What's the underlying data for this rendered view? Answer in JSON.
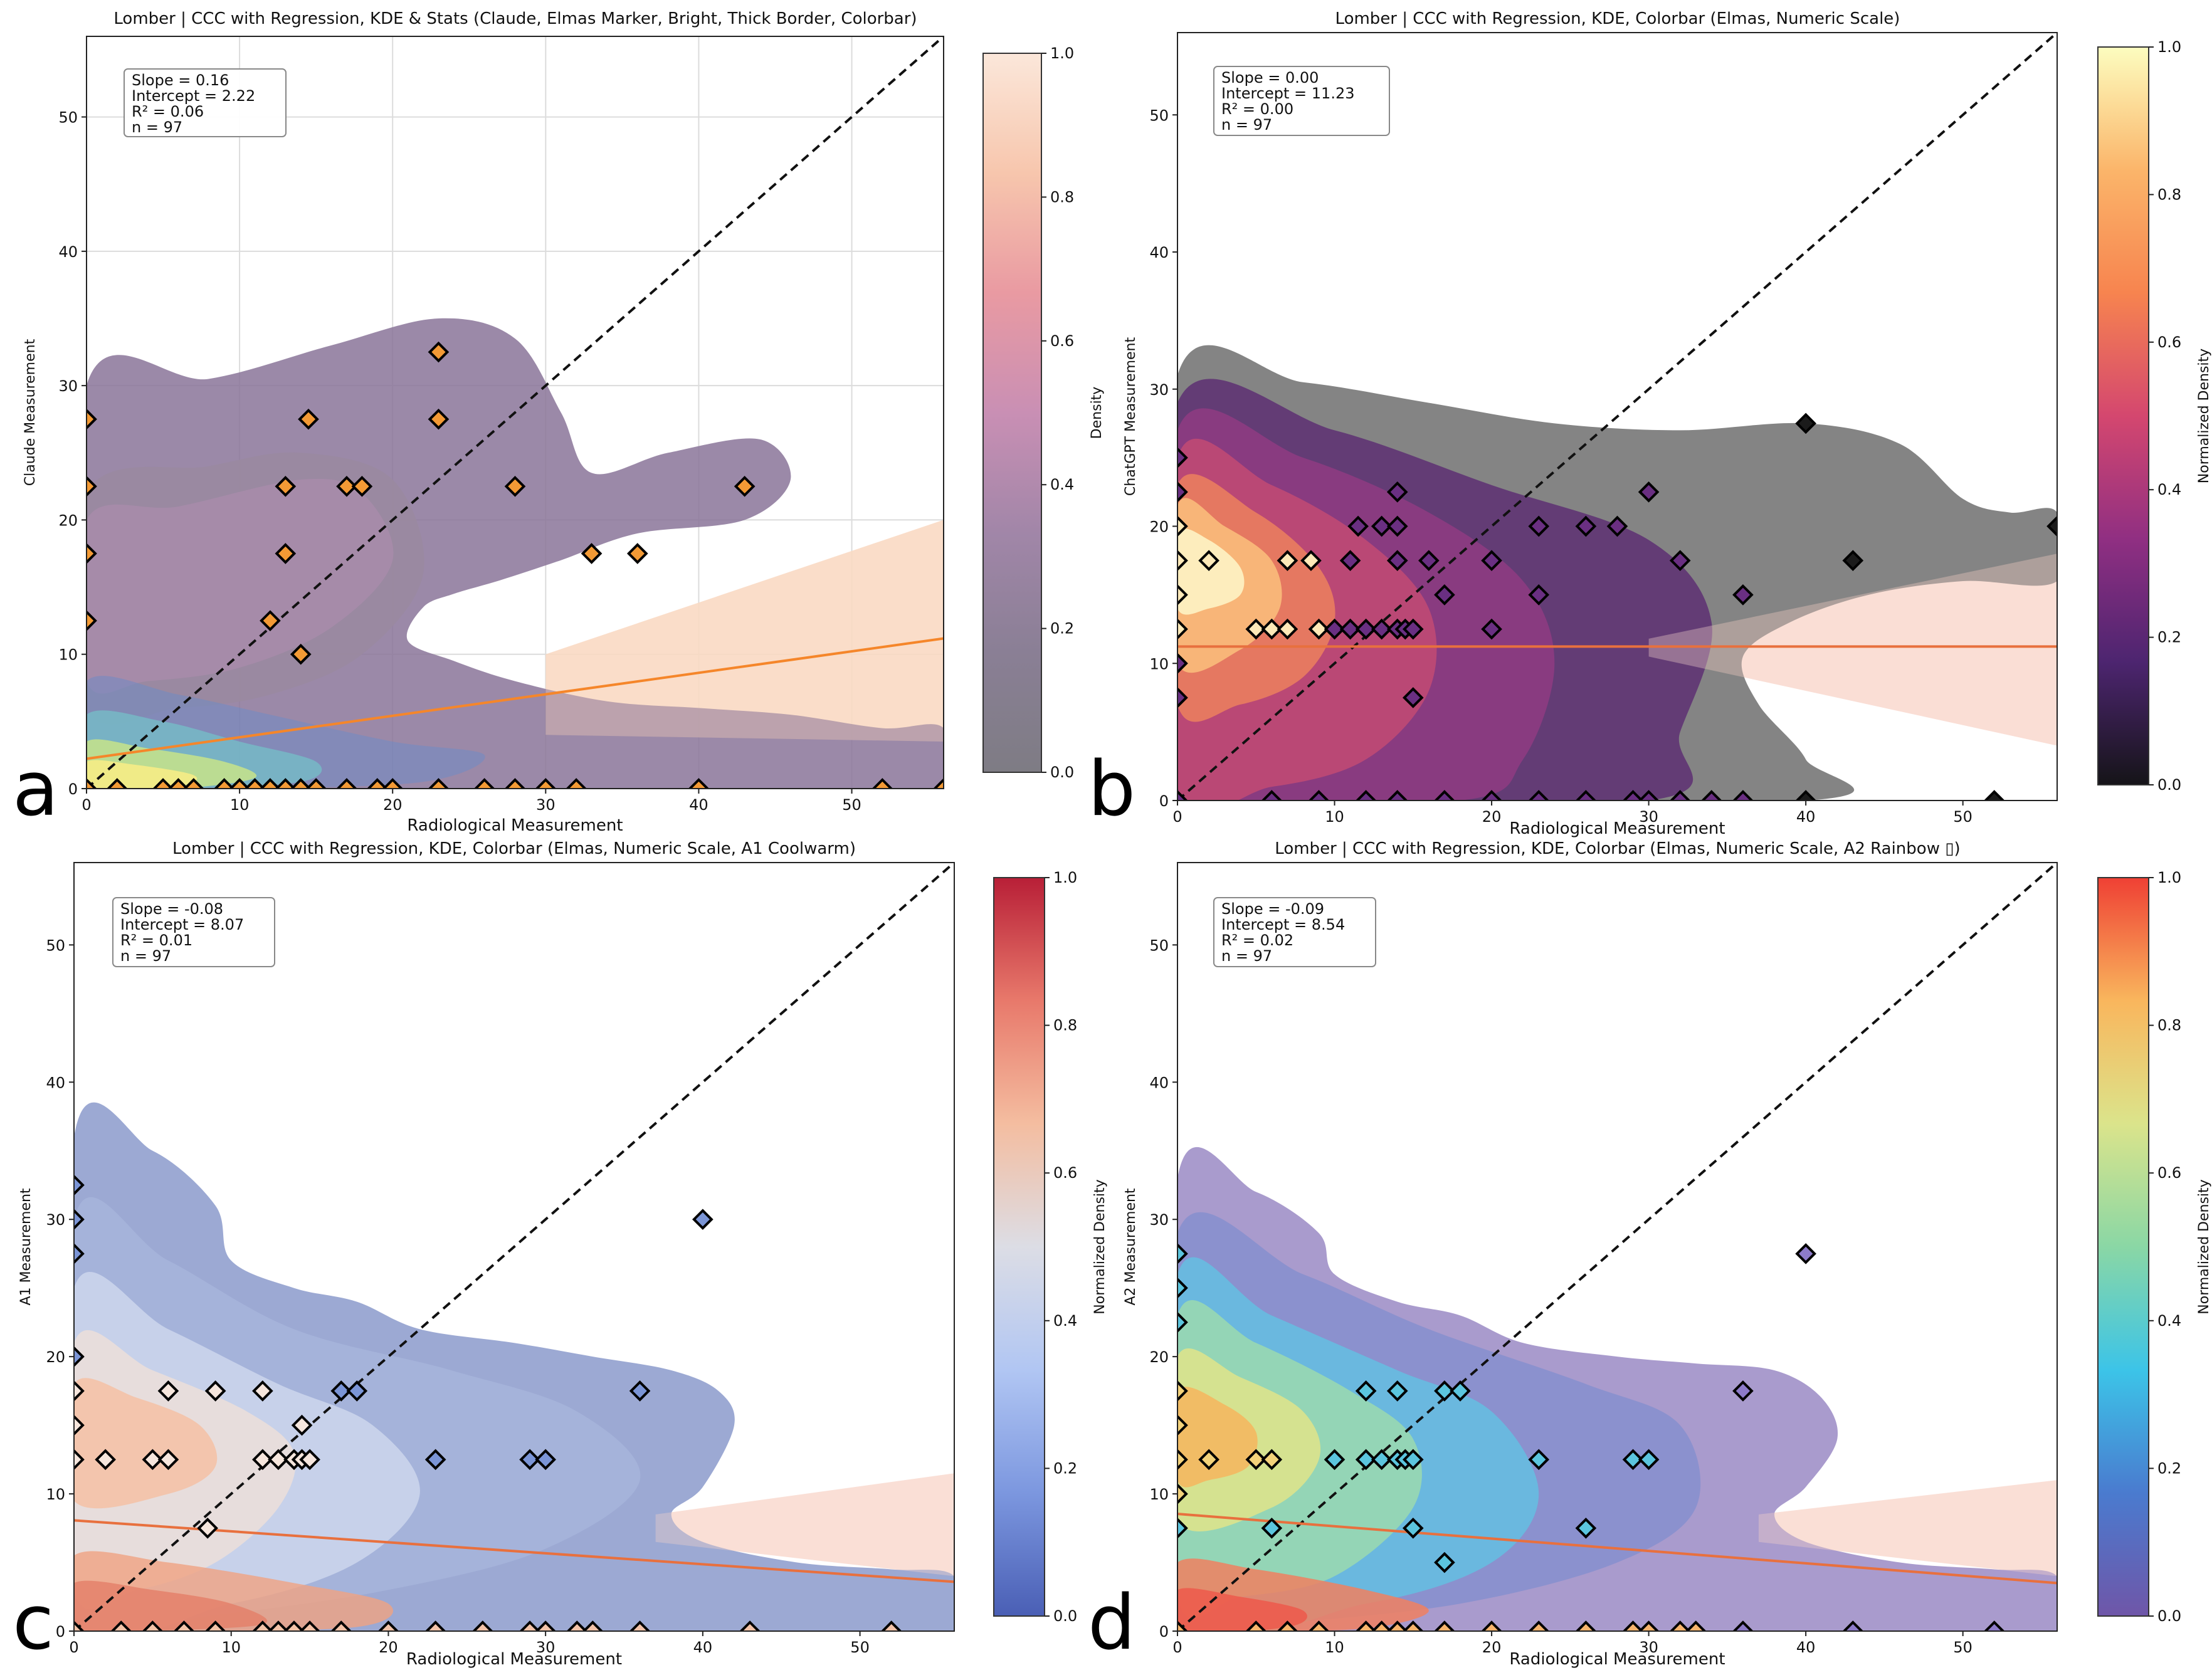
{
  "chart_data": [
    {
      "type": "scatter",
      "panel_letter": "a",
      "title": "Lomber | CCC with Regression, KDE & Stats (Claude, Elmas Marker, Bright, Thick Border, Colorbar)",
      "xlabel": "Radiological Measurement",
      "ylabel": "Claude Measurement",
      "xlim": [
        0,
        56
      ],
      "ylim": [
        0,
        56
      ],
      "xticks": [
        "0",
        "10",
        "20",
        "30",
        "40",
        "50"
      ],
      "yticks": [
        "0",
        "10",
        "20",
        "30",
        "40",
        "50"
      ],
      "grid": true,
      "stats": [
        "Slope = 0.16",
        "Intercept = 2.22",
        "R² = 0.06",
        "n = 97"
      ],
      "colorbar_label": "Density",
      "colorbar_ticks": [
        "0.0",
        "0.2",
        "0.4",
        "0.6",
        "0.8",
        "1.0"
      ],
      "colorbar_colors": [
        "#7e7c84",
        "#8a7f95",
        "#a186a8",
        "#c98fb4",
        "#e99aa2",
        "#f7c6ad",
        "#fbe7da"
      ],
      "regression": {
        "slope": 0.16,
        "intercept": 2.22,
        "color": "#f5862a"
      },
      "ci_band": {
        "color": "#f9d9c3",
        "x0": 30,
        "y0_low": 4,
        "y0_high": 10,
        "x1": 56,
        "y1_low": 3.5,
        "y1_high": 20
      },
      "marker": {
        "fill": "#f39a35",
        "edge": "#000000"
      },
      "points": [
        [
          0,
          27.5
        ],
        [
          0,
          22.5
        ],
        [
          0,
          17.5
        ],
        [
          0,
          12.5
        ],
        [
          0,
          0
        ],
        [
          2,
          0
        ],
        [
          5,
          0
        ],
        [
          6,
          0
        ],
        [
          7,
          0
        ],
        [
          9,
          0
        ],
        [
          10,
          0
        ],
        [
          11,
          0
        ],
        [
          12,
          0
        ],
        [
          13,
          0
        ],
        [
          14,
          0
        ],
        [
          15,
          0
        ],
        [
          17,
          0
        ],
        [
          19,
          0
        ],
        [
          20,
          0
        ],
        [
          23,
          0
        ],
        [
          26,
          0
        ],
        [
          28,
          0
        ],
        [
          30,
          0
        ],
        [
          32,
          0
        ],
        [
          40,
          0
        ],
        [
          52,
          0
        ],
        [
          56,
          0
        ],
        [
          12,
          12.5
        ],
        [
          14,
          10
        ],
        [
          13,
          17.5
        ],
        [
          13,
          22.5
        ],
        [
          14.5,
          27.5
        ],
        [
          17,
          22.5
        ],
        [
          18,
          22.5
        ],
        [
          23,
          32.5
        ],
        [
          23,
          27.5
        ],
        [
          28,
          22.5
        ],
        [
          33,
          17.5
        ],
        [
          36,
          17.5
        ],
        [
          43,
          22.5
        ]
      ]
    },
    {
      "type": "scatter",
      "panel_letter": "b",
      "title": "Lomber | CCC with Regression, KDE, Colorbar (Elmas, Numeric Scale)",
      "xlabel": "Radiological Measurement",
      "ylabel": "ChatGPT Measurement",
      "xlim": [
        0,
        56
      ],
      "ylim": [
        0,
        56
      ],
      "xticks": [
        "0",
        "10",
        "20",
        "30",
        "40",
        "50"
      ],
      "yticks": [
        "0",
        "10",
        "20",
        "30",
        "40",
        "50"
      ],
      "grid": false,
      "stats": [
        "Slope = 0.00",
        "Intercept = 11.23",
        "R² = 0.00",
        "n = 97"
      ],
      "colorbar_label": "Normalized Density",
      "colorbar_ticks": [
        "0.0",
        "0.2",
        "0.4",
        "0.6",
        "0.8",
        "1.0"
      ],
      "colorbar_colors": [
        "#151418",
        "#4d2570",
        "#902f82",
        "#d4476f",
        "#f7844f",
        "#fbb56a",
        "#fcfdbf"
      ],
      "regression": {
        "slope": 0.0,
        "intercept": 11.23,
        "color": "#e8703e"
      },
      "ci_band": {
        "color": "#fadad0",
        "x0": 30,
        "y0_low": 10.5,
        "y0_high": 11.8,
        "x1": 56,
        "y1_low": 4,
        "y1_high": 18
      },
      "marker": {
        "fill": "#6a2f82",
        "edge": "#000000"
      },
      "points": [
        [
          0,
          25
        ],
        [
          0,
          22.5
        ],
        [
          0,
          20
        ],
        [
          0,
          17.5
        ],
        [
          0,
          15
        ],
        [
          0,
          12.5
        ],
        [
          0,
          10
        ],
        [
          0,
          7.5
        ],
        [
          0,
          0
        ],
        [
          2,
          17.5
        ],
        [
          5,
          12.5
        ],
        [
          6,
          12.5
        ],
        [
          7,
          12.5
        ],
        [
          7,
          17.5
        ],
        [
          8.5,
          17.5
        ],
        [
          9,
          12.5
        ],
        [
          10,
          12.5
        ],
        [
          11,
          12.5
        ],
        [
          11,
          17.5
        ],
        [
          11.5,
          20
        ],
        [
          12,
          12.5
        ],
        [
          13,
          12.5
        ],
        [
          13,
          20
        ],
        [
          14,
          12.5
        ],
        [
          14,
          17.5
        ],
        [
          14,
          20
        ],
        [
          14,
          22.5
        ],
        [
          14.5,
          12.5
        ],
        [
          15,
          12.5
        ],
        [
          15,
          7.5
        ],
        [
          16,
          17.5
        ],
        [
          17,
          15
        ],
        [
          20,
          17.5
        ],
        [
          20,
          12.5
        ],
        [
          23,
          20
        ],
        [
          23,
          15
        ],
        [
          26,
          20
        ],
        [
          28,
          20
        ],
        [
          30,
          22.5
        ],
        [
          32,
          17.5
        ],
        [
          36,
          15
        ],
        [
          40,
          27.5
        ],
        [
          43,
          17.5
        ],
        [
          56,
          20
        ],
        [
          6,
          0
        ],
        [
          9,
          0
        ],
        [
          12,
          0
        ],
        [
          14,
          0
        ],
        [
          17,
          0
        ],
        [
          20,
          0
        ],
        [
          23,
          0
        ],
        [
          26,
          0
        ],
        [
          29,
          0
        ],
        [
          30,
          0
        ],
        [
          32,
          0
        ],
        [
          34,
          0
        ],
        [
          36,
          0
        ],
        [
          40,
          0
        ],
        [
          52,
          0
        ]
      ]
    },
    {
      "type": "scatter",
      "panel_letter": "c",
      "title": "Lomber | CCC with Regression, KDE, Colorbar (Elmas, Numeric Scale, A1 Coolwarm)",
      "xlabel": "Radiological Measurement",
      "ylabel": "A1 Measurement",
      "xlim": [
        0,
        56
      ],
      "ylim": [
        0,
        56
      ],
      "xticks": [
        "0",
        "10",
        "20",
        "30",
        "40",
        "50"
      ],
      "yticks": [
        "0",
        "10",
        "20",
        "30",
        "40",
        "50"
      ],
      "grid": false,
      "stats": [
        "Slope = -0.08",
        "Intercept = 8.07",
        "R² = 0.01",
        "n = 97"
      ],
      "colorbar_label": "Normalized Density",
      "colorbar_ticks": [
        "0.0",
        "0.2",
        "0.4",
        "0.6",
        "0.8",
        "1.0"
      ],
      "colorbar_colors": [
        "#4a5fb5",
        "#7c97df",
        "#b1c6f3",
        "#dcdde5",
        "#f4bda0",
        "#e8796b",
        "#b81f37"
      ],
      "regression": {
        "slope": -0.08,
        "intercept": 8.07,
        "color": "#e8703e"
      },
      "ci_band": {
        "color": "#f9dcd2",
        "x0": 37,
        "y0_low": 6.5,
        "y0_high": 8.5,
        "x1": 56,
        "y1_low": 4,
        "y1_high": 11.5
      },
      "marker": {
        "fill": "#7b95d6",
        "edge": "#000000"
      },
      "points": [
        [
          0,
          32.5
        ],
        [
          0,
          30
        ],
        [
          0,
          27.5
        ],
        [
          0,
          20
        ],
        [
          0,
          17.5
        ],
        [
          0,
          15
        ],
        [
          0,
          12.5
        ],
        [
          2,
          12.5
        ],
        [
          5,
          12.5
        ],
        [
          6,
          12.5
        ],
        [
          6,
          17.5
        ],
        [
          9,
          17.5
        ],
        [
          8.5,
          7.5
        ],
        [
          12,
          17.5
        ],
        [
          12,
          12.5
        ],
        [
          13,
          12.5
        ],
        [
          14,
          12.5
        ],
        [
          14.5,
          12.5
        ],
        [
          15,
          12.5
        ],
        [
          14.5,
          15
        ],
        [
          17,
          17.5
        ],
        [
          18,
          17.5
        ],
        [
          23,
          12.5
        ],
        [
          29,
          12.5
        ],
        [
          30,
          12.5
        ],
        [
          36,
          17.5
        ],
        [
          40,
          30
        ],
        [
          0,
          0
        ],
        [
          3,
          0
        ],
        [
          5,
          0
        ],
        [
          7,
          0
        ],
        [
          9,
          0
        ],
        [
          12,
          0
        ],
        [
          13,
          0
        ],
        [
          14,
          0
        ],
        [
          15,
          0
        ],
        [
          17,
          0
        ],
        [
          20,
          0
        ],
        [
          23,
          0
        ],
        [
          26,
          0
        ],
        [
          29,
          0
        ],
        [
          30,
          0
        ],
        [
          32,
          0
        ],
        [
          33,
          0
        ],
        [
          36,
          0
        ],
        [
          43,
          0
        ],
        [
          52,
          0
        ]
      ]
    },
    {
      "type": "scatter",
      "panel_letter": "d",
      "title": "Lomber | CCC with Regression, KDE, Colorbar (Elmas, Numeric Scale, A2 Rainbow ▯)",
      "xlabel": "Radiological Measurement",
      "ylabel": "A2 Measurement",
      "xlim": [
        0,
        56
      ],
      "ylim": [
        0,
        56
      ],
      "xticks": [
        "0",
        "10",
        "20",
        "30",
        "40",
        "50"
      ],
      "yticks": [
        "0",
        "10",
        "20",
        "30",
        "40",
        "50"
      ],
      "grid": false,
      "stats": [
        "Slope = -0.09",
        "Intercept = 8.54",
        "R² = 0.02",
        "n = 97"
      ],
      "colorbar_label": "Normalized Density",
      "colorbar_ticks": [
        "0.0",
        "0.2",
        "0.4",
        "0.6",
        "0.8",
        "1.0"
      ],
      "colorbar_colors": [
        "#6f56a8",
        "#4a7bcf",
        "#3cc4e8",
        "#8ad7a5",
        "#dbe48b",
        "#f9b65d",
        "#ef4034"
      ],
      "regression": {
        "slope": -0.09,
        "intercept": 8.54,
        "color": "#e8703e"
      },
      "ci_band": {
        "color": "#f9dcd2",
        "x0": 37,
        "y0_low": 6.5,
        "y0_high": 8.5,
        "x1": 56,
        "y1_low": 4,
        "y1_high": 11
      },
      "marker": {
        "fill": "#5bc5de",
        "edge": "#000000"
      },
      "points": [
        [
          0,
          27.5
        ],
        [
          0,
          25
        ],
        [
          0,
          22.5
        ],
        [
          0,
          17.5
        ],
        [
          0,
          15
        ],
        [
          0,
          12.5
        ],
        [
          0,
          10
        ],
        [
          0,
          7.5
        ],
        [
          2,
          12.5
        ],
        [
          5,
          12.5
        ],
        [
          6,
          12.5
        ],
        [
          6,
          7.5
        ],
        [
          10,
          12.5
        ],
        [
          12,
          17.5
        ],
        [
          12,
          12.5
        ],
        [
          13,
          12.5
        ],
        [
          14,
          12.5
        ],
        [
          14.5,
          12.5
        ],
        [
          15,
          12.5
        ],
        [
          14,
          17.5
        ],
        [
          15,
          7.5
        ],
        [
          17,
          17.5
        ],
        [
          18,
          17.5
        ],
        [
          17,
          5
        ],
        [
          23,
          12.5
        ],
        [
          26,
          7.5
        ],
        [
          29,
          12.5
        ],
        [
          30,
          12.5
        ],
        [
          36,
          17.5
        ],
        [
          40,
          27.5
        ],
        [
          0,
          0
        ],
        [
          5,
          0
        ],
        [
          7,
          0
        ],
        [
          9,
          0
        ],
        [
          12,
          0
        ],
        [
          13,
          0
        ],
        [
          14,
          0
        ],
        [
          15,
          0
        ],
        [
          17,
          0
        ],
        [
          20,
          0
        ],
        [
          23,
          0
        ],
        [
          26,
          0
        ],
        [
          29,
          0
        ],
        [
          30,
          0
        ],
        [
          32,
          0
        ],
        [
          33,
          0
        ],
        [
          36,
          0
        ],
        [
          43,
          0
        ],
        [
          52,
          0
        ]
      ]
    }
  ]
}
